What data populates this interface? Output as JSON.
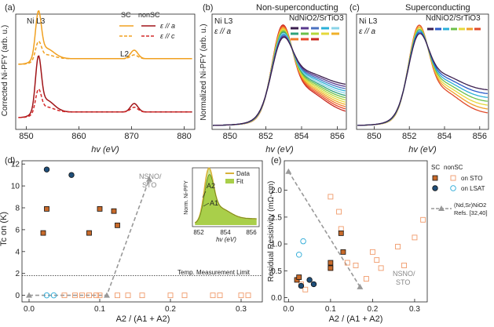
{
  "colors": {
    "orange": "#f0a020",
    "darkred": "#a01418",
    "red": "#d42a2a",
    "gray": "#999999",
    "green": "#a9cf4a",
    "gold": "#d8b23a",
    "black": "#111111",
    "navy": "#1f4e79",
    "cyan": "#29a9d6",
    "lightorange": "#f09a6a",
    "darkorange": "#c86a2a"
  },
  "chart_data": [
    {
      "panel": "(a)",
      "type": "line",
      "xlabel": "hv (eV)",
      "ylabel": "Corrected Ni-PFY (arb. u.)",
      "xlim": [
        848,
        882
      ],
      "xticks": [
        850,
        860,
        870,
        880
      ],
      "annotations": {
        "peak": "Ni L3",
        "l2": "L2"
      },
      "legend": {
        "col1": "SC",
        "col2": "nonSC",
        "row1": "ε // a",
        "row2": "ε // c"
      },
      "series": [
        {
          "name": "SC ε//a",
          "style": "solid",
          "color": "orange"
        },
        {
          "name": "SC ε//c",
          "style": "dashed",
          "color": "orange"
        },
        {
          "name": "nonSC ε//a",
          "style": "solid",
          "color": "darkred"
        },
        {
          "name": "nonSC ε//c",
          "style": "dashed",
          "color": "red"
        }
      ]
    },
    {
      "panel": "(b)",
      "type": "line",
      "title": "Non-superconducting",
      "xlabel": "hv (eV)",
      "ylabel": "Normalized Ni-PFY (arb. u.)",
      "xlim": [
        849,
        856.5
      ],
      "xticks": [
        850,
        852,
        854,
        856
      ],
      "label1": "Ni L3",
      "label2": "ε // a",
      "sample": "NdNiO2/SrTiO3",
      "peak_x": 852.9,
      "n_curves": 13,
      "legend_colors": [
        [
          "#3a1e4e",
          "#5a3a8e",
          "#4a72c2",
          "#2ab0d8",
          "#8ad4e8"
        ],
        [
          "#2fa37a",
          "#6cc04a",
          "#b6d83a",
          "#e6d83a",
          "#f0b02a"
        ],
        [
          "#f07a2a",
          "#e84a2a",
          "#c8281e"
        ]
      ]
    },
    {
      "panel": "(c)",
      "type": "line",
      "title": "Superconducting",
      "xlabel": "hv (eV)",
      "xlim": [
        849,
        856.5
      ],
      "xticks": [
        850,
        852,
        854,
        856
      ],
      "label1": "Ni L3",
      "label2": "ε // a",
      "sample": "NdNiO2/SrTiO3",
      "peak_x": 852.5,
      "n_curves": 7,
      "legend_colors": [
        "#3a1e4e",
        "#2a5ac8",
        "#2ab0d8",
        "#6cc04a",
        "#e6d83a",
        "#f0a02a",
        "#e04a2a"
      ]
    },
    {
      "panel": "(d)",
      "type": "scatter",
      "xlabel": "A2 / (A1 + A2)",
      "ylabel": "Tc on (K)",
      "xlim": [
        -0.01,
        0.33
      ],
      "ylim": [
        -0.6,
        12.3
      ],
      "xticks": [
        0.0,
        0.1,
        0.2,
        0.3
      ],
      "yticks": [
        0,
        2,
        4,
        6,
        8,
        10,
        12
      ],
      "limit_line": {
        "y": 1.8,
        "label": "Temp. Measurement Limit"
      },
      "ref_label": "NSNO/ STO",
      "ref_line": [
        [
          0.0,
          0
        ],
        [
          0.11,
          0
        ],
        [
          0.17,
          10.6
        ]
      ],
      "sc_sto": [
        [
          0.02,
          5.7
        ],
        [
          0.025,
          7.9
        ],
        [
          0.085,
          5.7
        ],
        [
          0.1,
          7.9
        ],
        [
          0.12,
          7.7
        ],
        [
          0.125,
          6.4
        ]
      ],
      "sc_lsat": [
        [
          0.025,
          11.5
        ],
        [
          0.06,
          11.0
        ]
      ],
      "nonsc_sto": [
        [
          0.05,
          0
        ],
        [
          0.065,
          0
        ],
        [
          0.075,
          0
        ],
        [
          0.085,
          0
        ],
        [
          0.095,
          0
        ],
        [
          0.1,
          0
        ],
        [
          0.125,
          0
        ],
        [
          0.14,
          0
        ],
        [
          0.16,
          0
        ],
        [
          0.2,
          0
        ],
        [
          0.22,
          0
        ],
        [
          0.26,
          0
        ],
        [
          0.27,
          0
        ],
        [
          0.3,
          0
        ],
        [
          0.31,
          0
        ]
      ],
      "nonsc_lsat": [
        [
          0.025,
          0
        ],
        [
          0.035,
          0
        ]
      ],
      "inset": {
        "ylabel": "Norm. Ni-PFY",
        "xlabel": "hv (eV)",
        "xticks": [
          852,
          854,
          856
        ],
        "legend": [
          "Data",
          "Fit"
        ],
        "labels": [
          "A2",
          "A1"
        ]
      }
    },
    {
      "panel": "(e)",
      "type": "scatter",
      "xlabel": "A2 / (A1 + A2)",
      "ylabel": "Residual Resistivity (mΩ-cm)",
      "xlim": [
        -0.01,
        0.33
      ],
      "ylim": [
        -0.08,
        2.55
      ],
      "xticks": [
        0.0,
        0.1,
        0.2,
        0.3
      ],
      "yticks": [
        0.0,
        0.5,
        1.0,
        1.5,
        2.0
      ],
      "legend_header": [
        "SC",
        "nonSC"
      ],
      "legend_rows": [
        "on STO",
        "on LSAT"
      ],
      "ref_legend": "(Nd,Sr)NiO2 Refs. [32,40]",
      "ref_label": "NSNO/ STO",
      "ref_line": [
        [
          0.0,
          2.35
        ],
        [
          0.17,
          0.2
        ]
      ],
      "sc_sto": [
        [
          0.02,
          0.33
        ],
        [
          0.025,
          0.38
        ],
        [
          0.1,
          0.55
        ],
        [
          0.1,
          0.65
        ],
        [
          0.125,
          1.2
        ],
        [
          0.13,
          0.85
        ]
      ],
      "sc_lsat": [
        [
          0.03,
          0.22
        ],
        [
          0.05,
          0.33
        ],
        [
          0.06,
          0.25
        ]
      ],
      "nonsc_sto": [
        [
          0.03,
          0.25
        ],
        [
          0.04,
          0.15
        ],
        [
          0.1,
          1.88
        ],
        [
          0.1,
          0.55
        ],
        [
          0.12,
          1.6
        ],
        [
          0.125,
          1.28
        ],
        [
          0.14,
          0.65
        ],
        [
          0.16,
          0.6
        ],
        [
          0.185,
          0.35
        ],
        [
          0.2,
          0.85
        ],
        [
          0.21,
          0.7
        ],
        [
          0.22,
          0.55
        ],
        [
          0.26,
          0.95
        ],
        [
          0.275,
          0.6
        ],
        [
          0.3,
          1.12
        ],
        [
          0.32,
          1.45
        ]
      ],
      "nonsc_lsat": [
        [
          0.025,
          0.8
        ],
        [
          0.035,
          1.05
        ]
      ]
    }
  ]
}
